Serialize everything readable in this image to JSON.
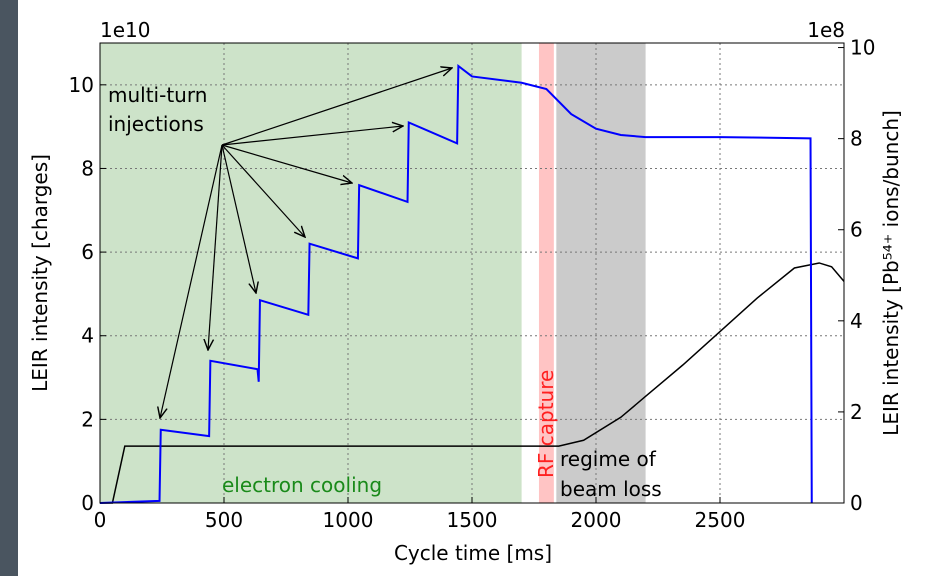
{
  "chart_data": {
    "type": "line",
    "xlabel": "Cycle time [ms]",
    "ylabel": "LEIR intensity [charges]",
    "y2label": "LEIR intensity [Pb⁵⁴⁺ ions/bunch]",
    "y_offset_label": "1e10",
    "y2_offset_label": "1e8",
    "xlim": [
      0,
      3000
    ],
    "xticks": [
      0,
      500,
      1000,
      1500,
      2000,
      2500
    ],
    "ylim": [
      0,
      11
    ],
    "yticks": [
      0,
      2,
      4,
      6,
      8,
      10
    ],
    "y2lim": [
      0,
      10.1
    ],
    "y2ticks": [
      0,
      2,
      4,
      6,
      8,
      10
    ],
    "grid": true,
    "spans": [
      {
        "start": 0,
        "end": 1700,
        "color": "#cde3c9"
      },
      {
        "start": 1770,
        "end": 1830,
        "color": "#ffc4c4"
      },
      {
        "start": 1840,
        "end": 2200,
        "color": "#cbcbcb"
      }
    ],
    "series": [
      {
        "color": "#0000ff",
        "x": [
          0,
          240,
          245,
          440,
          445,
          635,
          640,
          645,
          840,
          845,
          1040,
          1045,
          1240,
          1245,
          1440,
          1445,
          1500,
          1700,
          1800,
          1900,
          2000,
          2100,
          2200,
          2500,
          2865,
          2870
        ],
        "values": [
          0,
          0.05,
          1.75,
          1.6,
          3.4,
          3.2,
          2.9,
          4.85,
          4.5,
          6.2,
          5.85,
          7.6,
          7.2,
          9.1,
          8.6,
          10.45,
          10.2,
          10.05,
          9.9,
          9.3,
          8.95,
          8.8,
          8.75,
          8.75,
          8.72,
          0
        ]
      },
      {
        "color": "#000000",
        "x": [
          0,
          50,
          100,
          1850,
          1950,
          2100,
          2200,
          2350,
          2500,
          2650,
          2800,
          2900,
          2950,
          3000
        ],
        "values": [
          0,
          0,
          1.36,
          1.36,
          1.5,
          2.05,
          2.55,
          3.3,
          4.1,
          4.9,
          5.62,
          5.74,
          5.65,
          5.3
        ]
      }
    ],
    "annotations": {
      "injections": [
        "multi-turn",
        "injections"
      ],
      "cooling": "electron cooling",
      "capture": "RF capture",
      "loss": [
        "regime of",
        "beam loss"
      ]
    }
  }
}
